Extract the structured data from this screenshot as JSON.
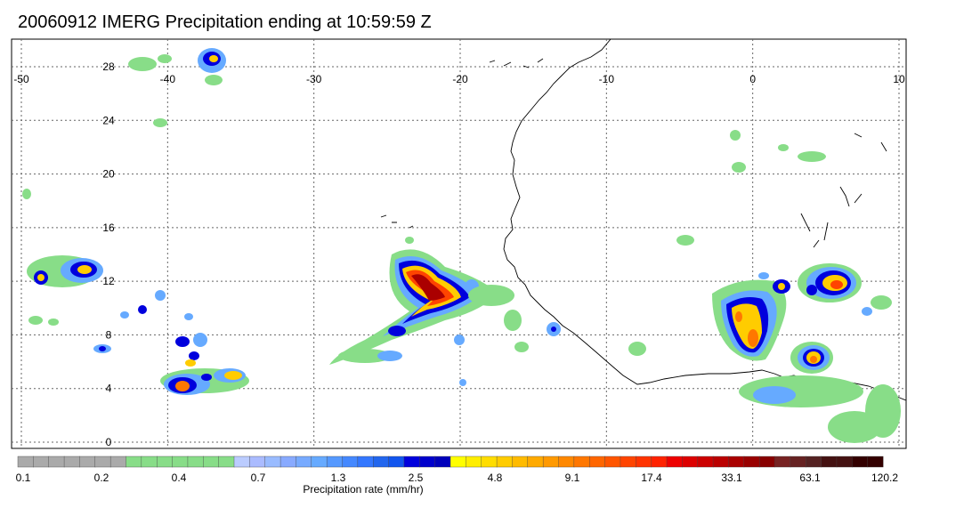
{
  "title": "20060912 IMERG Precipitation ending at 10:59:59 Z",
  "map": {
    "lon_range": [
      -50,
      10
    ],
    "lat_range": [
      -0.5,
      30
    ],
    "lon_ticks": [
      "-50",
      "-40",
      "-30",
      "-20",
      "-10",
      "0",
      "10"
    ],
    "lat_ticks": [
      "0",
      "4",
      "8",
      "12",
      "16",
      "20",
      "24",
      "28"
    ],
    "grid": "dotted"
  },
  "colorbar": {
    "title": "Precipitation rate (mm/hr)",
    "tick_labels": [
      "0.1",
      "0.2",
      "0.4",
      "0.7",
      "1.3",
      "2.5",
      "4.8",
      "9.1",
      "17.4",
      "33.1",
      "63.1",
      "120.2"
    ],
    "colors": [
      "#aaaaaa",
      "#aaaaaa",
      "#aaaaaa",
      "#aaaaaa",
      "#aaaaaa",
      "#aaaaaa",
      "#aaaaaa",
      "#88dd88",
      "#88dd88",
      "#88dd88",
      "#88dd88",
      "#88dd88",
      "#88dd88",
      "#88dd88",
      "#bbccff",
      "#aabbff",
      "#99bbff",
      "#88aaff",
      "#77aaff",
      "#66aaff",
      "#5599ff",
      "#4488ff",
      "#3377ff",
      "#2266ee",
      "#1155ee",
      "#0000dd",
      "#0000cc",
      "#0000bb",
      "#ffff00",
      "#ffee00",
      "#ffdd00",
      "#ffcc00",
      "#ffbb00",
      "#ffaa00",
      "#ff9900",
      "#ff8800",
      "#ff7700",
      "#ff6600",
      "#ff5500",
      "#ff4400",
      "#ff3300",
      "#ff2200",
      "#ee0000",
      "#dd0000",
      "#cc0000",
      "#bb0000",
      "#aa0000",
      "#990000",
      "#880000",
      "#772222",
      "#662222",
      "#552222",
      "#441111",
      "#441111",
      "#330000",
      "#330000"
    ]
  }
}
